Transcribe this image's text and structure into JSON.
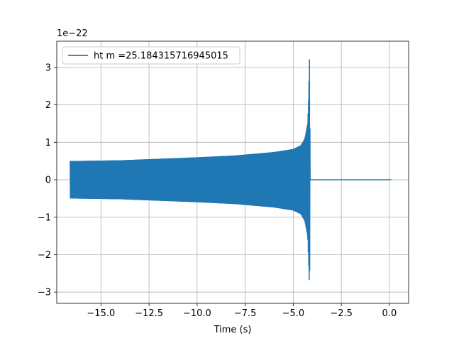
{
  "chart_data": {
    "type": "line",
    "xlabel": "Time (s)",
    "ylabel": "",
    "offset_text": "1e−22",
    "xlim": [
      -17.3,
      1.0
    ],
    "ylim": [
      -3.3,
      3.7
    ],
    "grid": true,
    "legend_position": "top-left",
    "x_ticks": [
      -15.0,
      -12.5,
      -10.0,
      -7.5,
      -5.0,
      -2.5,
      0.0
    ],
    "x_tick_labels": [
      "−15.0",
      "−12.5",
      "−10.0",
      "−7.5",
      "−5.0",
      "−2.5",
      "0.0"
    ],
    "y_ticks": [
      -3,
      -2,
      -1,
      0,
      1,
      2,
      3
    ],
    "y_tick_labels": [
      "−3",
      "−2",
      "−1",
      "0",
      "1",
      "2",
      "3"
    ],
    "series": [
      {
        "name": "ht m =25.184315716945015",
        "color": "#1f77b4",
        "description_points": {
          "x": [
            -16.6,
            -14.0,
            -12.0,
            -10.0,
            -8.0,
            -6.0,
            -5.0,
            -4.6,
            -4.4,
            -4.25,
            -4.2,
            -4.15,
            -4.12,
            -4.1,
            0.1
          ],
          "upper": [
            0.5,
            0.52,
            0.56,
            0.6,
            0.65,
            0.74,
            0.82,
            0.92,
            1.1,
            1.5,
            2.2,
            3.38,
            0.0,
            0.0,
            0.0
          ],
          "lower": [
            -0.5,
            -0.52,
            -0.56,
            -0.6,
            -0.65,
            -0.74,
            -0.82,
            -0.92,
            -1.1,
            -1.5,
            -2.2,
            -2.98,
            0.0,
            0.0,
            0.0
          ]
        },
        "start_x": -16.6,
        "merger_x": -4.12,
        "end_x": 0.1
      }
    ]
  }
}
